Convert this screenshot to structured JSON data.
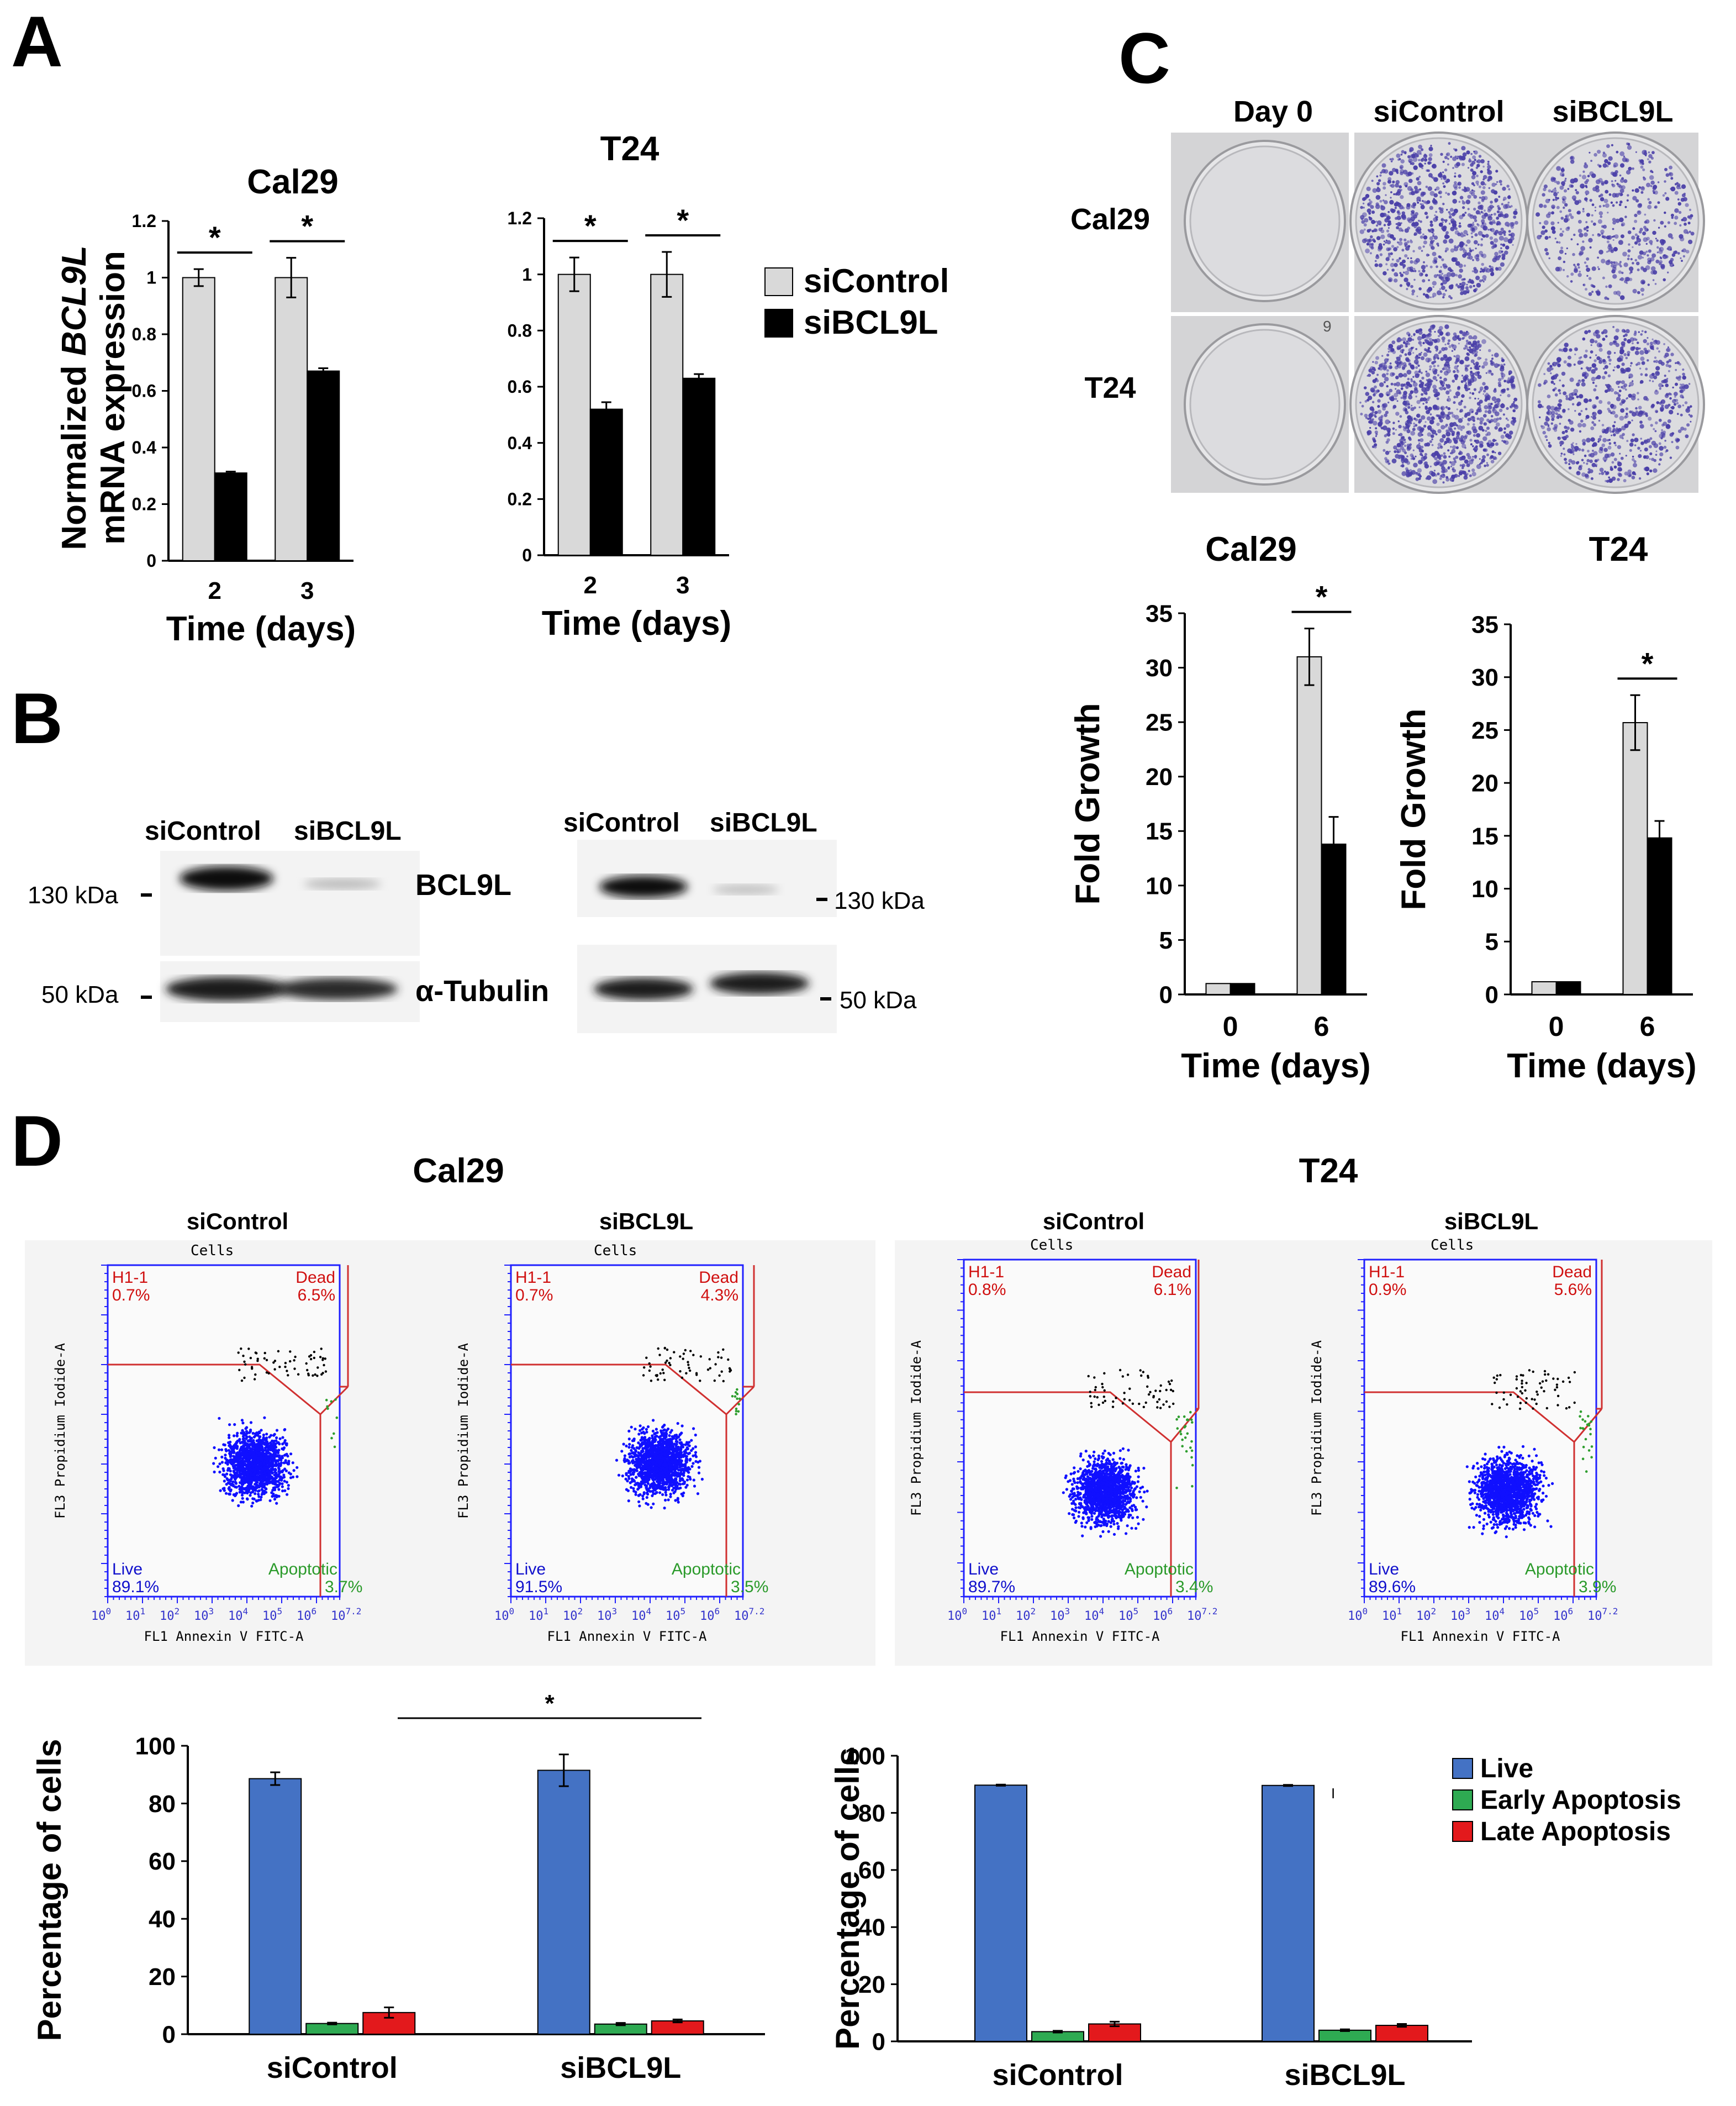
{
  "colors": {
    "grey": "#d9d9d9",
    "black": "#000000",
    "blue": "#4472c4",
    "green": "#2eaa52",
    "red": "#e3191c",
    "facs_blue": "#1010ff",
    "facs_green": "#2f9e2f",
    "facs_red": "#ff0000",
    "plate_violet": "#4a3fa8"
  },
  "panels": {
    "a": "A",
    "b": "B",
    "c": "C",
    "d": "D"
  },
  "chart_data": [
    {
      "id": "a_cal29",
      "type": "bar",
      "title": "Cal29",
      "ylabel_prefix": "Normalized ",
      "ylabel_gene": "BCL9L",
      "ylabel_line2": "mRNA expression",
      "xlabel": "Time (days)",
      "categories": [
        "2",
        "3"
      ],
      "ylim": [
        0,
        1.2
      ],
      "yticks": [
        "0",
        "0.2",
        "0.4",
        "0.6",
        "0.8",
        "1",
        "1.2"
      ],
      "sig": [
        "*",
        "*"
      ],
      "series": [
        {
          "name": "siControl",
          "values": [
            1.0,
            1.0
          ],
          "errors": [
            0.03,
            0.07
          ]
        },
        {
          "name": "siBCL9L",
          "values": [
            0.31,
            0.67
          ],
          "errors": [
            0.005,
            0.01
          ]
        }
      ]
    },
    {
      "id": "a_t24",
      "type": "bar",
      "title": "T24",
      "xlabel": "Time (days)",
      "categories": [
        "2",
        "3"
      ],
      "ylim": [
        0,
        1.2
      ],
      "yticks": [
        "0",
        "0.2",
        "0.4",
        "0.6",
        "0.8",
        "1",
        "1.2"
      ],
      "sig": [
        "*",
        "*"
      ],
      "legend": [
        "siControl",
        "siBCL9L"
      ],
      "series": [
        {
          "name": "siControl",
          "values": [
            1.0,
            1.0
          ],
          "errors": [
            0.06,
            0.08
          ]
        },
        {
          "name": "siBCL9L",
          "values": [
            0.52,
            0.63
          ],
          "errors": [
            0.025,
            0.015
          ]
        }
      ]
    },
    {
      "id": "c_cal29",
      "type": "bar",
      "title": "Cal29",
      "ylabel": "Fold Growth",
      "xlabel": "Time (days)",
      "categories": [
        "0",
        "6"
      ],
      "ylim": [
        0,
        35
      ],
      "yticks": [
        "0",
        "5",
        "10",
        "15",
        "20",
        "25",
        "30",
        "35"
      ],
      "sig": [
        "",
        "*"
      ],
      "series": [
        {
          "name": "siControl",
          "values": [
            1,
            31
          ],
          "errors": [
            0,
            2.6
          ]
        },
        {
          "name": "siBCL9L",
          "values": [
            1,
            13.8
          ],
          "errors": [
            0,
            2.5
          ]
        }
      ]
    },
    {
      "id": "c_t24",
      "type": "bar",
      "title": "T24",
      "ylabel": "Fold Growth",
      "xlabel": "Time (days)",
      "categories": [
        "0",
        "6"
      ],
      "ylim": [
        0,
        35
      ],
      "yticks": [
        "0",
        "5",
        "10",
        "15",
        "20",
        "25",
        "30",
        "35"
      ],
      "sig": [
        "",
        "*"
      ],
      "series": [
        {
          "name": "siControl",
          "values": [
            1.2,
            25.7
          ],
          "errors": [
            0,
            2.6
          ]
        },
        {
          "name": "siBCL9L",
          "values": [
            1.2,
            14.8
          ],
          "errors": [
            0,
            1.6
          ]
        }
      ]
    },
    {
      "id": "d_cal29_bar",
      "type": "bar",
      "ylabel": "Percentage of cells",
      "categories": [
        "siControl",
        "siBCL9L"
      ],
      "ylim": [
        0,
        100
      ],
      "yticks": [
        "0",
        "20",
        "40",
        "60",
        "80",
        "100"
      ],
      "sig_label": "*",
      "series": [
        {
          "name": "Live",
          "values": [
            88.6,
            91.5
          ],
          "errors": [
            2.2,
            5.5
          ]
        },
        {
          "name": "Early Apoptosis",
          "values": [
            3.7,
            3.5
          ],
          "errors": [
            0.3,
            0.4
          ]
        },
        {
          "name": "Late Apoptosis",
          "values": [
            7.5,
            4.6
          ],
          "errors": [
            1.8,
            0.5
          ]
        }
      ]
    },
    {
      "id": "d_t24_bar",
      "type": "bar",
      "ylabel": "Percentage of cells",
      "categories": [
        "siControl",
        "siBCL9L"
      ],
      "ylim": [
        0,
        100
      ],
      "yticks": [
        "0",
        "20",
        "40",
        "60",
        "80",
        "100"
      ],
      "legend": [
        "Live",
        "Early Apoptosis",
        "Late Apoptosis"
      ],
      "series": [
        {
          "name": "Live",
          "values": [
            89.7,
            89.6
          ],
          "errors": [
            0.2,
            0.2
          ]
        },
        {
          "name": "Early Apoptosis",
          "values": [
            3.4,
            3.9
          ],
          "errors": [
            0.3,
            0.3
          ]
        },
        {
          "name": "Late Apoptosis",
          "values": [
            6.1,
            5.6
          ],
          "errors": [
            0.8,
            0.5
          ]
        }
      ]
    }
  ],
  "clonogenic": {
    "cols": [
      "Day 0",
      "siControl",
      "siBCL9L"
    ],
    "rows": [
      "Cal29",
      "T24"
    ],
    "plate_mark": "9"
  },
  "western": {
    "left": {
      "lanes": [
        "siControl",
        "siBCL9L"
      ],
      "markers": [
        "130 kDa",
        "50 kDa"
      ],
      "bands": [
        "BCL9L",
        "α-Tubulin"
      ]
    },
    "right": {
      "lanes": [
        "siControl",
        "siBCL9L"
      ],
      "markers": [
        "130 kDa",
        "50 kDa"
      ]
    }
  },
  "flow": {
    "cal29_title": "Cal29",
    "t24_title": "T24",
    "plot_title": "Cells",
    "xaxis": "FL1 Annexin V FITC-A",
    "yaxis": "FL3 Propidium Iodide-A",
    "tick_zero": "10",
    "tick_zero_exp": "0",
    "tick_x": [
      "10",
      "10",
      "10",
      "10",
      "10",
      "10",
      "10"
    ],
    "tick_x_exp": [
      "1",
      "2",
      "3",
      "4",
      "5",
      "6",
      "7.2"
    ],
    "plots": [
      {
        "cond": "siControl",
        "h1": "H1-1",
        "h1_val": "0.7%",
        "dead": "Dead",
        "dead_val": "6.5%",
        "live": "Live",
        "live_val": "89.1%",
        "apop": "Apoptotic",
        "apop_val": "3.7%"
      },
      {
        "cond": "siBCL9L",
        "h1": "H1-1",
        "h1_val": "0.7%",
        "dead": "Dead",
        "dead_val": "4.3%",
        "live": "Live",
        "live_val": "91.5%",
        "apop": "Apoptotic",
        "apop_val": "3.5%"
      },
      {
        "cond": "siControl",
        "h1": "H1-1",
        "h1_val": "0.8%",
        "dead": "Dead",
        "dead_val": "6.1%",
        "live": "Live",
        "live_val": "89.7%",
        "apop": "Apoptotic",
        "apop_val": "3.4%"
      },
      {
        "cond": "siBCL9L",
        "h1": "H1-1",
        "h1_val": "0.9%",
        "dead": "Dead",
        "dead_val": "5.6%",
        "live": "Live",
        "live_val": "89.6%",
        "apop": "Apoptotic",
        "apop_val": "3.9%"
      }
    ]
  }
}
